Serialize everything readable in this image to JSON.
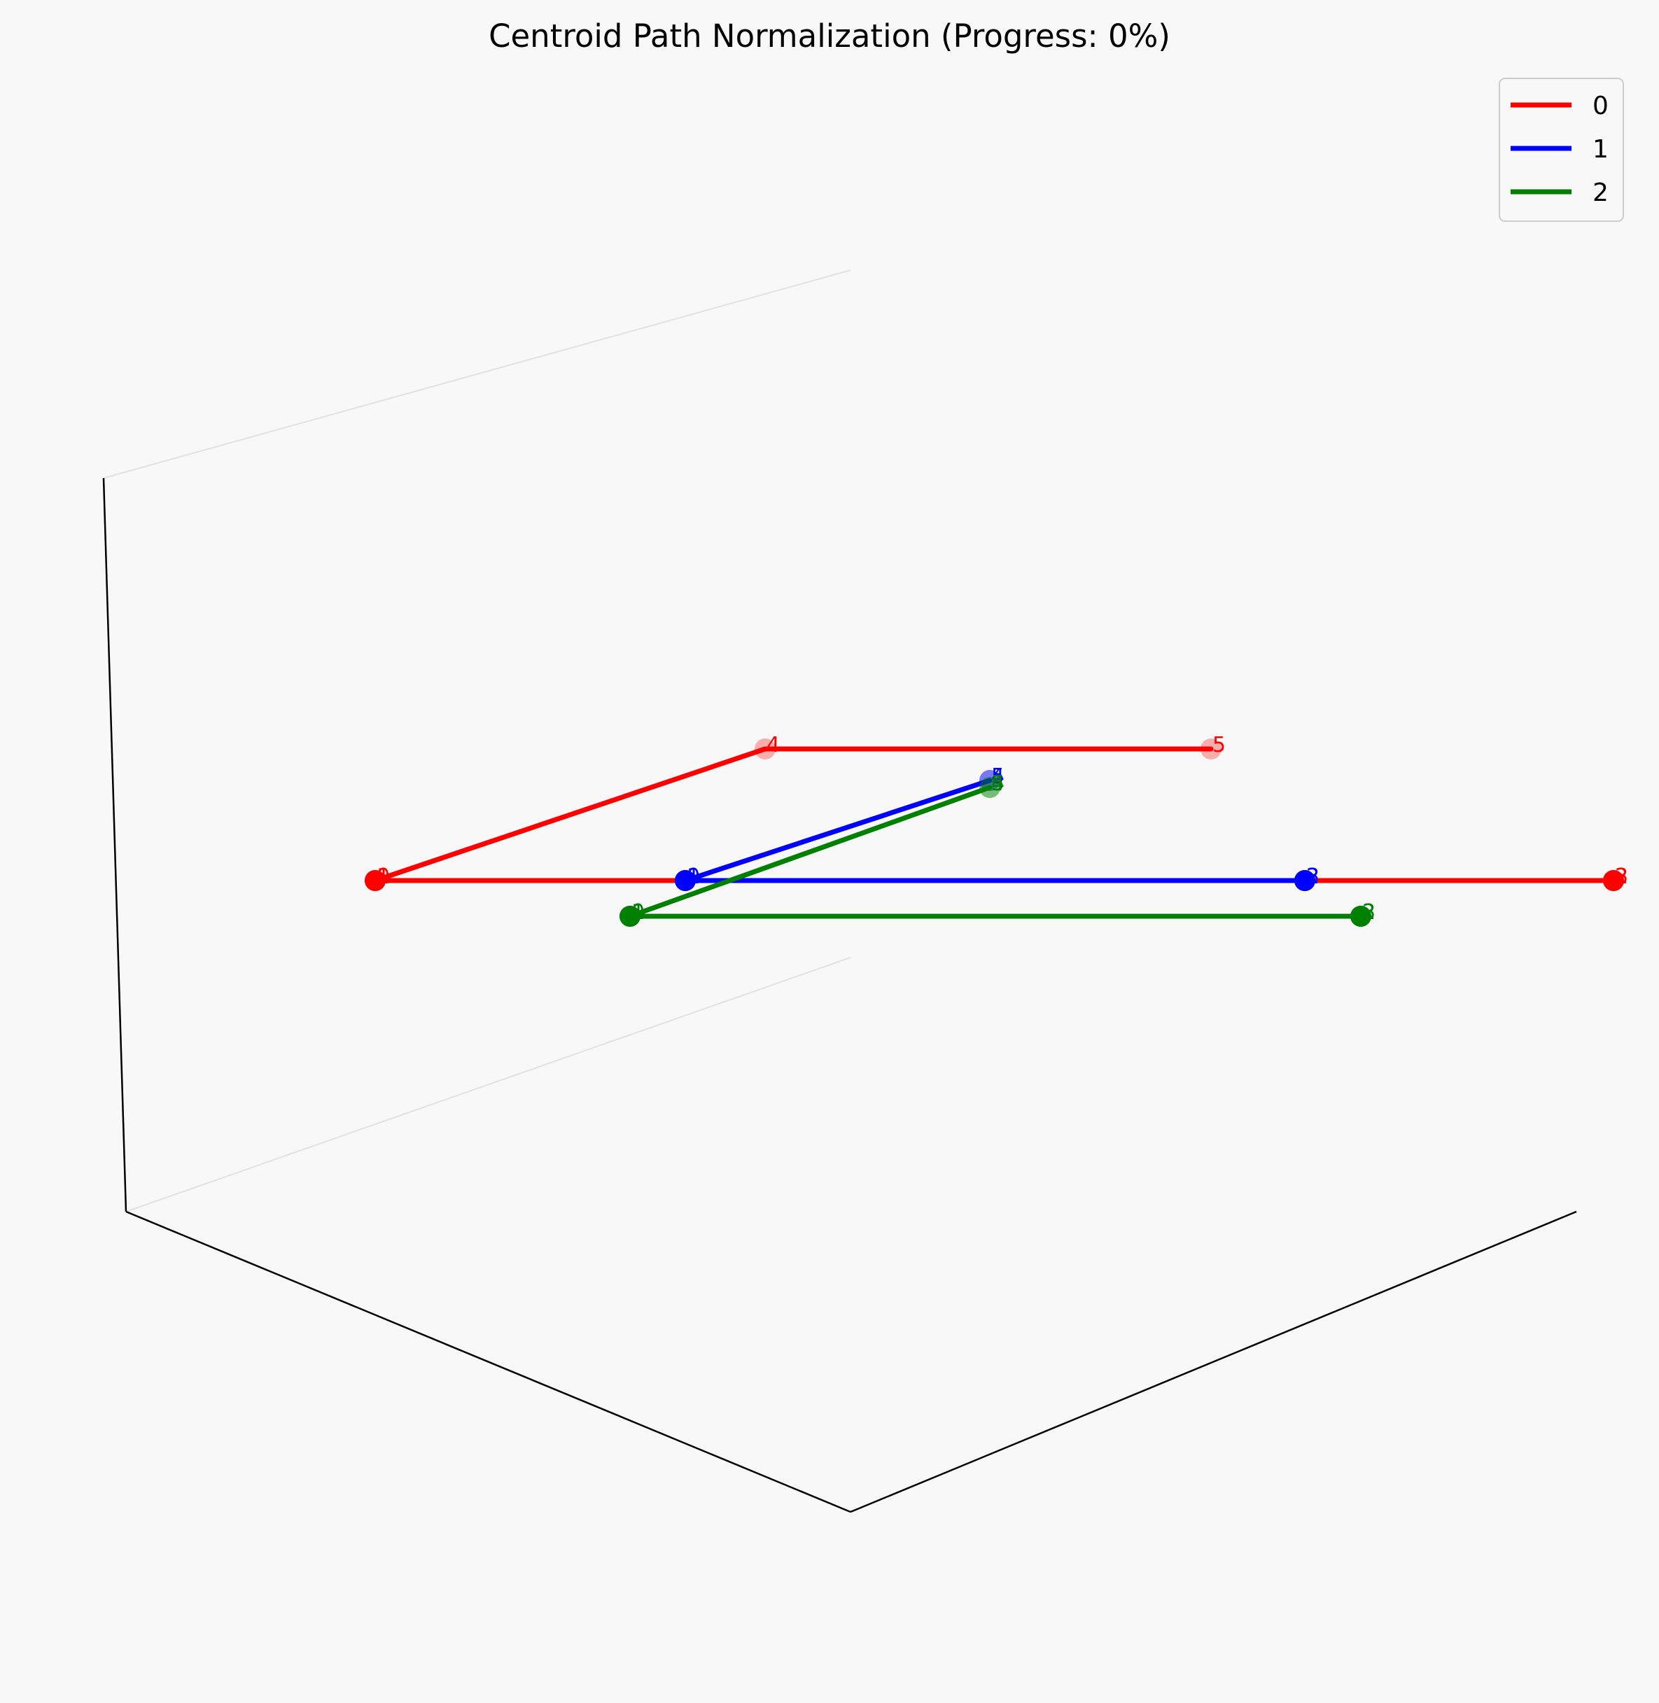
{
  "chart_data": {
    "type": "line",
    "projection": "3d",
    "title": "Centroid Path Normalization (Progress: 0%)",
    "legend": {
      "placement": "top-right"
    },
    "series": [
      {
        "name": "0",
        "color": "#ff0000",
        "points": [
          {
            "label": "0",
            "x": 0,
            "y": 0,
            "z": 0,
            "faded": false
          },
          {
            "label": "1",
            "x": 0,
            "y": 0,
            "z": 0,
            "faded": false
          },
          {
            "label": "2",
            "x": 1,
            "y": 0,
            "z": 0,
            "faded": false
          },
          {
            "label": "3",
            "x": 1,
            "y": 0,
            "z": 0,
            "faded": false
          },
          {
            "label": "4",
            "x": 0,
            "y": 1,
            "z": 0,
            "faded": true
          },
          {
            "label": "5",
            "x": 1,
            "y": 1,
            "z": 0,
            "faded": true
          }
        ],
        "path": [
          "0",
          "3",
          "0",
          "4",
          "5"
        ]
      },
      {
        "name": "1",
        "color": "#0000ff",
        "points": [
          {
            "label": "0",
            "x": 0.25,
            "y": 0,
            "z": 0,
            "faded": false
          },
          {
            "label": "1",
            "x": 0.25,
            "y": 0,
            "z": 0,
            "faded": false
          },
          {
            "label": "2",
            "x": 0.75,
            "y": 0,
            "z": 0,
            "faded": false
          },
          {
            "label": "3",
            "x": 0.75,
            "y": 0,
            "z": 0,
            "faded": false
          },
          {
            "label": "4",
            "x": 0.5,
            "y": 0.6,
            "z": 0,
            "faded": true
          },
          {
            "label": "5",
            "x": 0.5,
            "y": 0.6,
            "z": 0,
            "faded": true
          }
        ],
        "path": [
          "0",
          "3",
          "0",
          "4"
        ]
      },
      {
        "name": "2",
        "color": "#008000",
        "points": [
          {
            "label": "0",
            "x": 0.2,
            "y": -0.1,
            "z": 0,
            "faded": false
          },
          {
            "label": "1",
            "x": 0.2,
            "y": -0.1,
            "z": 0,
            "faded": false
          },
          {
            "label": "2",
            "x": 0.8,
            "y": -0.1,
            "z": 0,
            "faded": false
          },
          {
            "label": "3",
            "x": 0.8,
            "y": -0.1,
            "z": 0,
            "faded": false
          },
          {
            "label": "4",
            "x": 0.5,
            "y": 0.55,
            "z": 0,
            "faded": true
          },
          {
            "label": "5",
            "x": 0.5,
            "y": 0.55,
            "z": 0,
            "faded": true
          }
        ],
        "path": [
          "0",
          "3",
          "0",
          "4"
        ]
      }
    ]
  }
}
